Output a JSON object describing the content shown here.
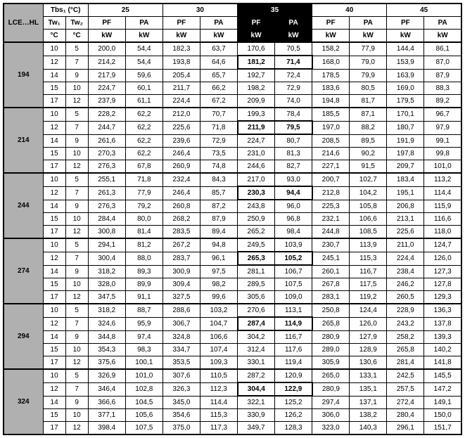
{
  "title": "LCE…HL",
  "subheaders": {
    "tbs1": "Tbs₁ (°C)",
    "tw1": "Tw₁",
    "tw2": "Tw₂",
    "C": "°C",
    "PF": "PF",
    "PA": "PA",
    "kW": "kW"
  },
  "tbs_cols": [
    "25",
    "30",
    "35",
    "40",
    "45"
  ],
  "groups": [
    {
      "name": "194",
      "rows": [
        {
          "tw1": "10",
          "tw2": "5",
          "v": [
            "200,0",
            "54,4",
            "182,3",
            "63,7",
            "170,6",
            "70,5",
            "158,2",
            "77,9",
            "144,4",
            "86,1"
          ]
        },
        {
          "tw1": "12",
          "tw2": "7",
          "v": [
            "214,2",
            "54,4",
            "193,8",
            "64,6",
            "181,2",
            "71,4",
            "168,0",
            "79,0",
            "153,9",
            "87,0"
          ],
          "hl": [
            4,
            5
          ]
        },
        {
          "tw1": "14",
          "tw2": "9",
          "v": [
            "217,9",
            "59,6",
            "205,4",
            "65,7",
            "192,7",
            "72,4",
            "178,5",
            "79,9",
            "163,9",
            "87,9"
          ]
        },
        {
          "tw1": "15",
          "tw2": "10",
          "v": [
            "224,7",
            "60,1",
            "211,7",
            "66,2",
            "198,2",
            "72,9",
            "183,6",
            "80,5",
            "169,0",
            "88,3"
          ]
        },
        {
          "tw1": "17",
          "tw2": "12",
          "v": [
            "237,9",
            "61,1",
            "224,4",
            "67,2",
            "209,9",
            "74,0",
            "194,8",
            "81,7",
            "179,5",
            "89,2"
          ]
        }
      ]
    },
    {
      "name": "214",
      "rows": [
        {
          "tw1": "10",
          "tw2": "5",
          "v": [
            "228,2",
            "62,2",
            "212,0",
            "70,7",
            "199,3",
            "78,4",
            "185,5",
            "87,1",
            "170,1",
            "96,7"
          ]
        },
        {
          "tw1": "12",
          "tw2": "7",
          "v": [
            "244,7",
            "62,2",
            "225,6",
            "71,8",
            "211,9",
            "79,5",
            "197,0",
            "88,2",
            "180,7",
            "97,9"
          ],
          "hl": [
            4,
            5
          ]
        },
        {
          "tw1": "14",
          "tw2": "9",
          "v": [
            "261,6",
            "62,2",
            "239,6",
            "72,9",
            "224,7",
            "80,7",
            "208,5",
            "89,5",
            "191,9",
            "99,1"
          ]
        },
        {
          "tw1": "15",
          "tw2": "10",
          "v": [
            "270,3",
            "62,2",
            "246,4",
            "73,5",
            "231,0",
            "81,3",
            "214,6",
            "90,2",
            "197,8",
            "99,8"
          ]
        },
        {
          "tw1": "17",
          "tw2": "12",
          "v": [
            "276,3",
            "67,8",
            "260,9",
            "74,8",
            "244,6",
            "82,7",
            "227,1",
            "91,5",
            "209,7",
            "101,0"
          ]
        }
      ]
    },
    {
      "name": "244",
      "rows": [
        {
          "tw1": "10",
          "tw2": "5",
          "v": [
            "255,1",
            "71,8",
            "232,4",
            "84,3",
            "217,0",
            "93,0",
            "200,7",
            "102,7",
            "183,4",
            "113,2"
          ]
        },
        {
          "tw1": "12",
          "tw2": "7",
          "v": [
            "261,3",
            "77,9",
            "246,4",
            "85,7",
            "230,3",
            "94,4",
            "212,8",
            "104,2",
            "195,1",
            "114,4"
          ],
          "hl": [
            4,
            5
          ]
        },
        {
          "tw1": "14",
          "tw2": "9",
          "v": [
            "276,3",
            "79,2",
            "260,8",
            "87,2",
            "243,8",
            "96,0",
            "225,3",
            "105,8",
            "206,8",
            "115,9"
          ]
        },
        {
          "tw1": "15",
          "tw2": "10",
          "v": [
            "284,4",
            "80,0",
            "268,2",
            "87,9",
            "250,9",
            "96,8",
            "232,1",
            "106,6",
            "213,1",
            "116,6"
          ]
        },
        {
          "tw1": "17",
          "tw2": "12",
          "v": [
            "300,8",
            "81,4",
            "283,5",
            "89,4",
            "265,2",
            "98,4",
            "244,8",
            "108,5",
            "225,6",
            "118,0"
          ]
        }
      ]
    },
    {
      "name": "274",
      "rows": [
        {
          "tw1": "10",
          "tw2": "5",
          "v": [
            "294,1",
            "81,2",
            "267,2",
            "94,8",
            "249,5",
            "103,9",
            "230,7",
            "113,9",
            "211,0",
            "124,7"
          ]
        },
        {
          "tw1": "12",
          "tw2": "7",
          "v": [
            "300,4",
            "88,0",
            "283,7",
            "96,1",
            "265,3",
            "105,2",
            "245,1",
            "115,3",
            "224,4",
            "126,0"
          ],
          "hl": [
            4,
            5
          ]
        },
        {
          "tw1": "14",
          "tw2": "9",
          "v": [
            "318,2",
            "89,3",
            "300,9",
            "97,5",
            "281,1",
            "106,7",
            "260,1",
            "116,7",
            "238,4",
            "127,3"
          ]
        },
        {
          "tw1": "15",
          "tw2": "10",
          "v": [
            "328,0",
            "89,9",
            "309,4",
            "98,2",
            "289,5",
            "107,5",
            "267,8",
            "117,5",
            "246,2",
            "127,8"
          ]
        },
        {
          "tw1": "17",
          "tw2": "12",
          "v": [
            "347,5",
            "91,1",
            "327,5",
            "99,6",
            "305,6",
            "109,0",
            "283,1",
            "119,2",
            "260,5",
            "129,3"
          ]
        }
      ]
    },
    {
      "name": "294",
      "rows": [
        {
          "tw1": "10",
          "tw2": "5",
          "v": [
            "318,2",
            "88,7",
            "288,6",
            "103,2",
            "270,6",
            "113,1",
            "250,8",
            "124,4",
            "228,9",
            "136,3"
          ]
        },
        {
          "tw1": "12",
          "tw2": "7",
          "v": [
            "324,6",
            "95,9",
            "306,7",
            "104,7",
            "287,4",
            "114,9",
            "265,8",
            "126,0",
            "243,2",
            "137,8"
          ],
          "hl": [
            4,
            5
          ]
        },
        {
          "tw1": "14",
          "tw2": "9",
          "v": [
            "344,8",
            "97,4",
            "324,8",
            "106,6",
            "304,2",
            "116,7",
            "280,9",
            "127,9",
            "258,2",
            "139,3"
          ]
        },
        {
          "tw1": "15",
          "tw2": "10",
          "v": [
            "354,3",
            "98,3",
            "334,7",
            "107,4",
            "312,4",
            "117,6",
            "289,0",
            "128,9",
            "265,8",
            "140,2"
          ]
        },
        {
          "tw1": "17",
          "tw2": "12",
          "v": [
            "375,6",
            "100,1",
            "353,5",
            "109,3",
            "330,1",
            "119,4",
            "305,9",
            "130,6",
            "281,4",
            "141,8"
          ]
        }
      ]
    },
    {
      "name": "324",
      "rows": [
        {
          "tw1": "10",
          "tw2": "5",
          "v": [
            "326,9",
            "101,0",
            "307,6",
            "110,5",
            "287,2",
            "120,9",
            "265,0",
            "133,1",
            "242,5",
            "145,5"
          ]
        },
        {
          "tw1": "12",
          "tw2": "7",
          "v": [
            "346,4",
            "102,8",
            "326,3",
            "112,3",
            "304,4",
            "122,9",
            "280,9",
            "135,1",
            "257,5",
            "147,2"
          ],
          "hl": [
            4,
            5
          ]
        },
        {
          "tw1": "14",
          "tw2": "9",
          "v": [
            "366,6",
            "104,5",
            "345,0",
            "114,4",
            "322,1",
            "125,2",
            "297,4",
            "137,1",
            "272,4",
            "149,1"
          ]
        },
        {
          "tw1": "15",
          "tw2": "10",
          "v": [
            "377,1",
            "105,6",
            "354,6",
            "115,3",
            "330,9",
            "126,2",
            "306,0",
            "138,2",
            "280,4",
            "150,0"
          ]
        },
        {
          "tw1": "17",
          "tw2": "12",
          "v": [
            "398,4",
            "107,5",
            "375,0",
            "117,3",
            "349,7",
            "128,3",
            "323,0",
            "140,3",
            "296,1",
            "151,7"
          ]
        }
      ]
    }
  ],
  "style": {
    "header_bg": "#b0b0b0",
    "dark_bg": "#000000",
    "dark_fg": "#ffffff",
    "font_size": 10
  }
}
